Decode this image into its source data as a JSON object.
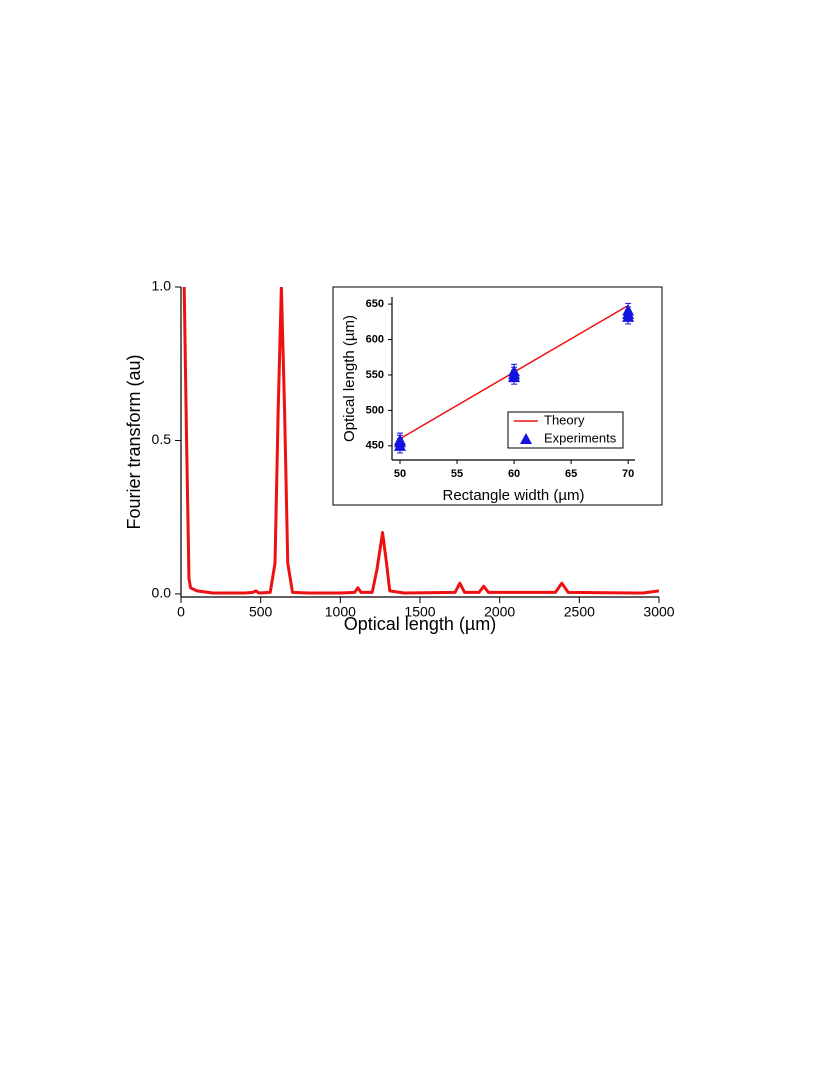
{
  "chart_data": [
    {
      "type": "line",
      "xlabel": "Optical length (µm)",
      "ylabel": "Fourier transform (au)",
      "xlim": [
        0,
        3000
      ],
      "ylim": [
        -0.01,
        1.0
      ],
      "xticks": [
        0,
        500,
        1000,
        1500,
        2000,
        2500,
        3000
      ],
      "yticks": [
        {
          "value": 0,
          "label": "0.0"
        },
        {
          "value": 0.5,
          "label": "0.5"
        },
        {
          "value": 1,
          "label": "1.0"
        }
      ],
      "color": "#ee1111",
      "x": [
        20,
        35,
        50,
        60,
        100,
        200,
        400,
        450,
        470,
        490,
        560,
        590,
        610,
        630,
        650,
        670,
        700,
        800,
        1000,
        1090,
        1110,
        1130,
        1200,
        1230,
        1265,
        1290,
        1310,
        1400,
        1720,
        1750,
        1780,
        1870,
        1900,
        1930,
        2350,
        2390,
        2430,
        2900,
        3000
      ],
      "values": [
        1.0,
        0.5,
        0.05,
        0.02,
        0.01,
        0.003,
        0.003,
        0.005,
        0.01,
        0.003,
        0.005,
        0.1,
        0.6,
        1.0,
        0.6,
        0.1,
        0.005,
        0.003,
        0.003,
        0.005,
        0.02,
        0.005,
        0.005,
        0.08,
        0.2,
        0.1,
        0.01,
        0.003,
        0.005,
        0.035,
        0.005,
        0.005,
        0.025,
        0.005,
        0.005,
        0.035,
        0.005,
        0.003,
        0.01
      ]
    },
    {
      "type": "scatter",
      "xlabel": "Rectangle width (µm)",
      "ylabel": "Optical length (µm)",
      "xlim": [
        49.3,
        70.6
      ],
      "ylim": [
        430,
        660
      ],
      "xticks": [
        50,
        55,
        60,
        65,
        70
      ],
      "yticks": [
        450,
        500,
        550,
        600,
        650
      ],
      "legend": "lower right",
      "series": [
        {
          "name": "Theory",
          "type": "line",
          "color": "#ee1111",
          "x": [
            50,
            70
          ],
          "values": [
            460,
            648
          ]
        },
        {
          "name": "Experiments",
          "type": "scatter",
          "color": "#1414e0",
          "x": [
            50,
            50,
            50,
            60,
            60,
            60,
            70,
            70,
            70
          ],
          "values": [
            450,
            455,
            458,
            547,
            551,
            555,
            632,
            636,
            641
          ],
          "errors": [
            10,
            10,
            10,
            10,
            10,
            10,
            10,
            10,
            10
          ]
        }
      ]
    }
  ]
}
